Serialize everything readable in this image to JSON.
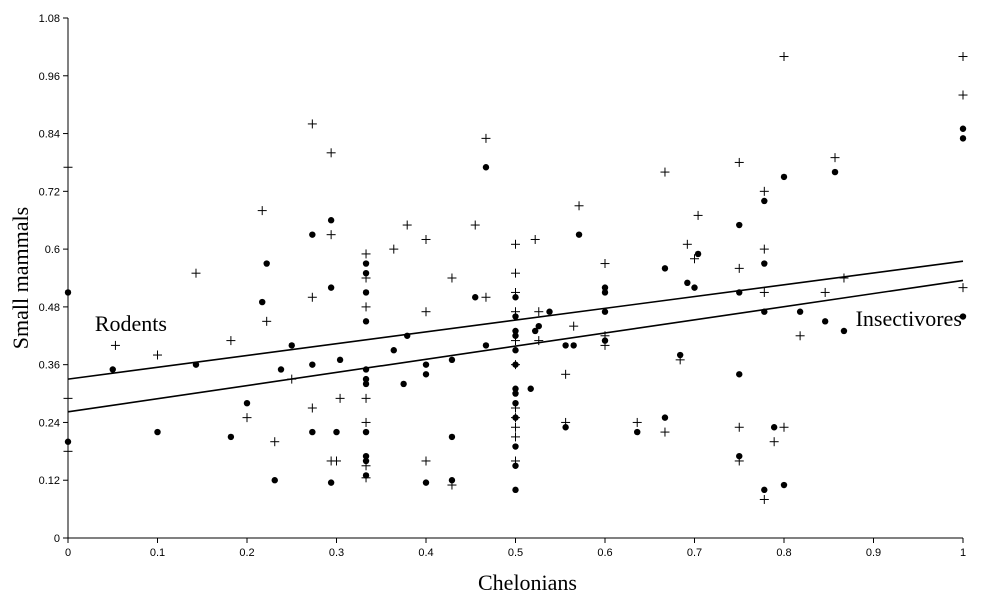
{
  "chart_data": {
    "type": "scatter",
    "xlabel": "Chelonians",
    "ylabel": "Small mammals",
    "xlim": [
      0,
      1
    ],
    "ylim": [
      0,
      1.08
    ],
    "x_ticks": [
      0,
      0.1,
      0.2,
      0.3,
      0.4,
      0.5,
      0.6,
      0.7,
      0.8,
      0.9,
      1
    ],
    "x_tick_labels": [
      "0",
      "0.1",
      "0.2",
      "0.3",
      "0.4",
      "0.5",
      "0.6",
      "0.7",
      "0.8",
      "0.9",
      "1"
    ],
    "y_ticks": [
      0,
      0.12,
      0.24,
      0.36,
      0.48,
      0.6,
      0.72,
      0.84,
      0.96,
      1.08
    ],
    "y_tick_labels": [
      "0",
      "0.12",
      "0.24",
      "0.36",
      "0.48",
      "0.6",
      "0.72",
      "0.84",
      "0.96",
      "1.08"
    ],
    "grid": false,
    "annotations": [
      {
        "text": "Rodents",
        "x": 0.03,
        "y": 0.43
      },
      {
        "text": "Insectivores",
        "x": 0.88,
        "y": 0.44
      }
    ],
    "series": [
      {
        "marker": "circle",
        "points": [
          [
            0,
            0.51
          ],
          [
            0,
            0.2
          ],
          [
            0.05,
            0.35
          ],
          [
            0.1,
            0.22
          ],
          [
            0.143,
            0.36
          ],
          [
            0.182,
            0.21
          ],
          [
            0.2,
            0.28
          ],
          [
            0.217,
            0.49
          ],
          [
            0.222,
            0.57
          ],
          [
            0.231,
            0.12
          ],
          [
            0.238,
            0.35
          ],
          [
            0.25,
            0.4
          ],
          [
            0.273,
            0.63
          ],
          [
            0.273,
            0.36
          ],
          [
            0.273,
            0.22
          ],
          [
            0.294,
            0.52
          ],
          [
            0.294,
            0.66
          ],
          [
            0.294,
            0.115
          ],
          [
            0.3,
            0.22
          ],
          [
            0.304,
            0.37
          ],
          [
            0.333,
            0.57
          ],
          [
            0.333,
            0.55
          ],
          [
            0.333,
            0.51
          ],
          [
            0.333,
            0.45
          ],
          [
            0.333,
            0.35
          ],
          [
            0.333,
            0.33
          ],
          [
            0.333,
            0.32
          ],
          [
            0.333,
            0.22
          ],
          [
            0.333,
            0.17
          ],
          [
            0.333,
            0.16
          ],
          [
            0.333,
            0.13
          ],
          [
            0.364,
            0.39
          ],
          [
            0.375,
            0.32
          ],
          [
            0.379,
            0.42
          ],
          [
            0.4,
            0.36
          ],
          [
            0.4,
            0.34
          ],
          [
            0.4,
            0.115
          ],
          [
            0.429,
            0.37
          ],
          [
            0.429,
            0.21
          ],
          [
            0.429,
            0.12
          ],
          [
            0.455,
            0.5
          ],
          [
            0.467,
            0.4
          ],
          [
            0.467,
            0.77
          ],
          [
            0.5,
            0.5
          ],
          [
            0.5,
            0.46
          ],
          [
            0.5,
            0.43
          ],
          [
            0.5,
            0.39
          ],
          [
            0.5,
            0.36
          ],
          [
            0.5,
            0.31
          ],
          [
            0.5,
            0.3
          ],
          [
            0.5,
            0.28
          ],
          [
            0.5,
            0.25
          ],
          [
            0.5,
            0.19
          ],
          [
            0.5,
            0.15
          ],
          [
            0.5,
            0.1
          ],
          [
            0.5,
            0.42
          ],
          [
            0.517,
            0.31
          ],
          [
            0.522,
            0.43
          ],
          [
            0.526,
            0.44
          ],
          [
            0.538,
            0.47
          ],
          [
            0.556,
            0.4
          ],
          [
            0.556,
            0.23
          ],
          [
            0.565,
            0.4
          ],
          [
            0.571,
            0.63
          ],
          [
            0.6,
            0.52
          ],
          [
            0.6,
            0.51
          ],
          [
            0.6,
            0.47
          ],
          [
            0.6,
            0.41
          ],
          [
            0.636,
            0.22
          ],
          [
            0.667,
            0.56
          ],
          [
            0.667,
            0.25
          ],
          [
            0.684,
            0.38
          ],
          [
            0.692,
            0.53
          ],
          [
            0.7,
            0.52
          ],
          [
            0.704,
            0.59
          ],
          [
            0.75,
            0.65
          ],
          [
            0.75,
            0.51
          ],
          [
            0.75,
            0.34
          ],
          [
            0.75,
            0.17
          ],
          [
            0.778,
            0.7
          ],
          [
            0.778,
            0.57
          ],
          [
            0.778,
            0.47
          ],
          [
            0.778,
            0.1
          ],
          [
            0.789,
            0.23
          ],
          [
            0.8,
            0.75
          ],
          [
            0.8,
            0.11
          ],
          [
            0.818,
            0.47
          ],
          [
            0.846,
            0.45
          ],
          [
            0.857,
            0.76
          ],
          [
            0.867,
            0.43
          ],
          [
            1,
            0.85
          ],
          [
            1,
            0.83
          ],
          [
            1,
            0.46
          ]
        ]
      },
      {
        "marker": "plus",
        "points": [
          [
            0,
            0.77
          ],
          [
            0,
            0.29
          ],
          [
            0,
            0.18
          ],
          [
            0.053,
            0.4
          ],
          [
            0.1,
            0.38
          ],
          [
            0.143,
            0.55
          ],
          [
            0.182,
            0.41
          ],
          [
            0.2,
            0.25
          ],
          [
            0.217,
            0.68
          ],
          [
            0.222,
            0.45
          ],
          [
            0.231,
            0.2
          ],
          [
            0.25,
            0.33
          ],
          [
            0.273,
            0.86
          ],
          [
            0.273,
            0.5
          ],
          [
            0.273,
            0.27
          ],
          [
            0.294,
            0.8
          ],
          [
            0.294,
            0.63
          ],
          [
            0.294,
            0.16
          ],
          [
            0.3,
            0.16
          ],
          [
            0.304,
            0.29
          ],
          [
            0.333,
            0.59
          ],
          [
            0.333,
            0.54
          ],
          [
            0.333,
            0.48
          ],
          [
            0.333,
            0.29
          ],
          [
            0.333,
            0.24
          ],
          [
            0.333,
            0.15
          ],
          [
            0.333,
            0.125
          ],
          [
            0.364,
            0.6
          ],
          [
            0.379,
            0.65
          ],
          [
            0.4,
            0.62
          ],
          [
            0.4,
            0.47
          ],
          [
            0.4,
            0.16
          ],
          [
            0.429,
            0.54
          ],
          [
            0.429,
            0.11
          ],
          [
            0.455,
            0.65
          ],
          [
            0.467,
            0.5
          ],
          [
            0.467,
            0.83
          ],
          [
            0.5,
            0.61
          ],
          [
            0.5,
            0.55
          ],
          [
            0.5,
            0.51
          ],
          [
            0.5,
            0.47
          ],
          [
            0.5,
            0.41
          ],
          [
            0.5,
            0.36
          ],
          [
            0.5,
            0.27
          ],
          [
            0.5,
            0.25
          ],
          [
            0.5,
            0.23
          ],
          [
            0.5,
            0.21
          ],
          [
            0.5,
            0.16
          ],
          [
            0.522,
            0.62
          ],
          [
            0.526,
            0.47
          ],
          [
            0.526,
            0.41
          ],
          [
            0.556,
            0.34
          ],
          [
            0.556,
            0.24
          ],
          [
            0.565,
            0.44
          ],
          [
            0.571,
            0.69
          ],
          [
            0.6,
            0.57
          ],
          [
            0.6,
            0.42
          ],
          [
            0.6,
            0.4
          ],
          [
            0.636,
            0.24
          ],
          [
            0.667,
            0.76
          ],
          [
            0.667,
            0.22
          ],
          [
            0.684,
            0.37
          ],
          [
            0.692,
            0.61
          ],
          [
            0.7,
            0.58
          ],
          [
            0.704,
            0.67
          ],
          [
            0.75,
            0.78
          ],
          [
            0.75,
            0.56
          ],
          [
            0.75,
            0.23
          ],
          [
            0.75,
            0.16
          ],
          [
            0.778,
            0.72
          ],
          [
            0.778,
            0.6
          ],
          [
            0.778,
            0.51
          ],
          [
            0.778,
            0.08
          ],
          [
            0.789,
            0.2
          ],
          [
            0.8,
            1.0
          ],
          [
            0.8,
            0.23
          ],
          [
            0.818,
            0.42
          ],
          [
            0.846,
            0.51
          ],
          [
            0.857,
            0.79
          ],
          [
            0.867,
            0.54
          ],
          [
            1,
            1.0
          ],
          [
            1,
            0.92
          ],
          [
            1,
            0.52
          ]
        ]
      }
    ],
    "trend_lines": [
      {
        "x": [
          0,
          1
        ],
        "y": [
          0.33,
          0.575
        ]
      },
      {
        "x": [
          0,
          1
        ],
        "y": [
          0.262,
          0.535
        ]
      }
    ]
  }
}
